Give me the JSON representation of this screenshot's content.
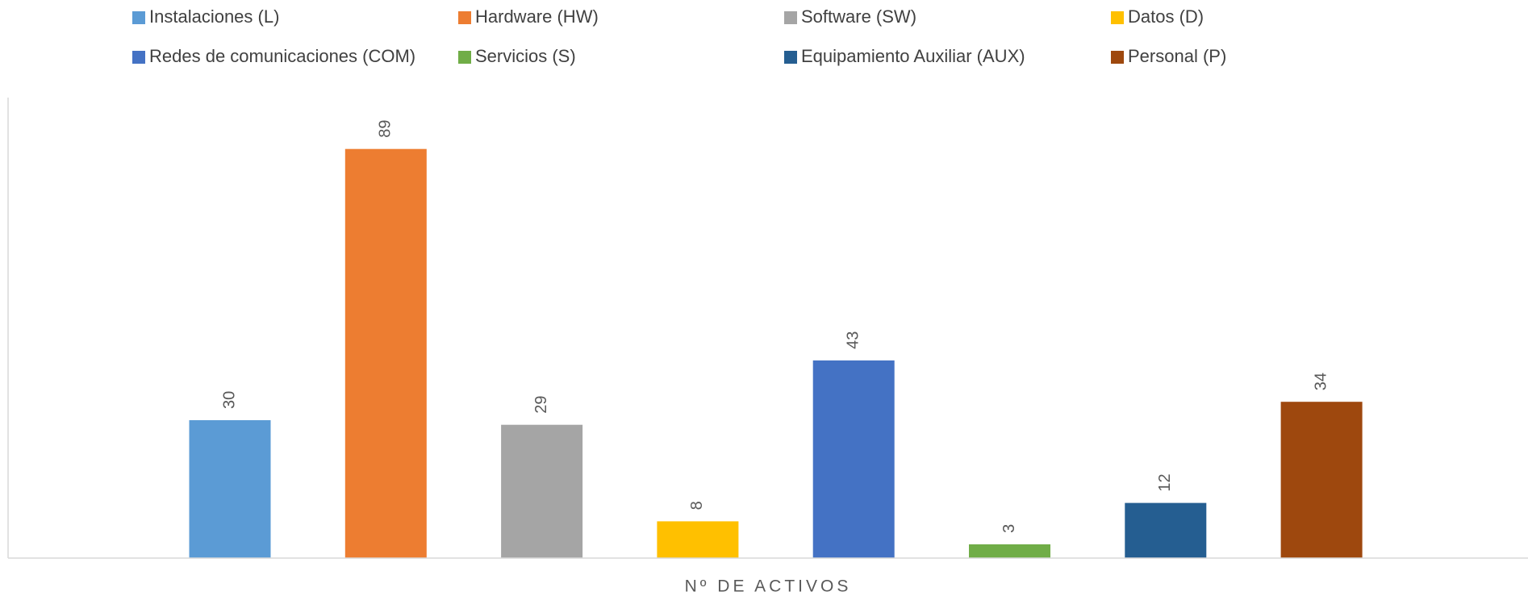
{
  "chart_data": {
    "type": "bar",
    "categories": [
      "Nº DE ACTIVOS"
    ],
    "series": [
      {
        "name": "Instalaciones (L)",
        "color": "#5b9bd5",
        "values": [
          30
        ]
      },
      {
        "name": "Hardware (HW)",
        "color": "#ed7d31",
        "values": [
          89
        ]
      },
      {
        "name": "Software (SW)",
        "color": "#a5a5a5",
        "values": [
          29
        ]
      },
      {
        "name": "Datos (D)",
        "color": "#ffc000",
        "values": [
          8
        ]
      },
      {
        "name": "Redes de comunicaciones (COM)",
        "color": "#4472c4",
        "values": [
          43
        ]
      },
      {
        "name": "Servicios (S)",
        "color": "#70ad47",
        "values": [
          3
        ]
      },
      {
        "name": "Equipamiento Auxiliar  (AUX)",
        "color": "#255e91",
        "values": [
          12
        ]
      },
      {
        "name": "Personal (P)",
        "color": "#9e480e",
        "values": [
          34
        ]
      }
    ],
    "ylim": [
      0,
      100
    ],
    "legend": "top"
  }
}
